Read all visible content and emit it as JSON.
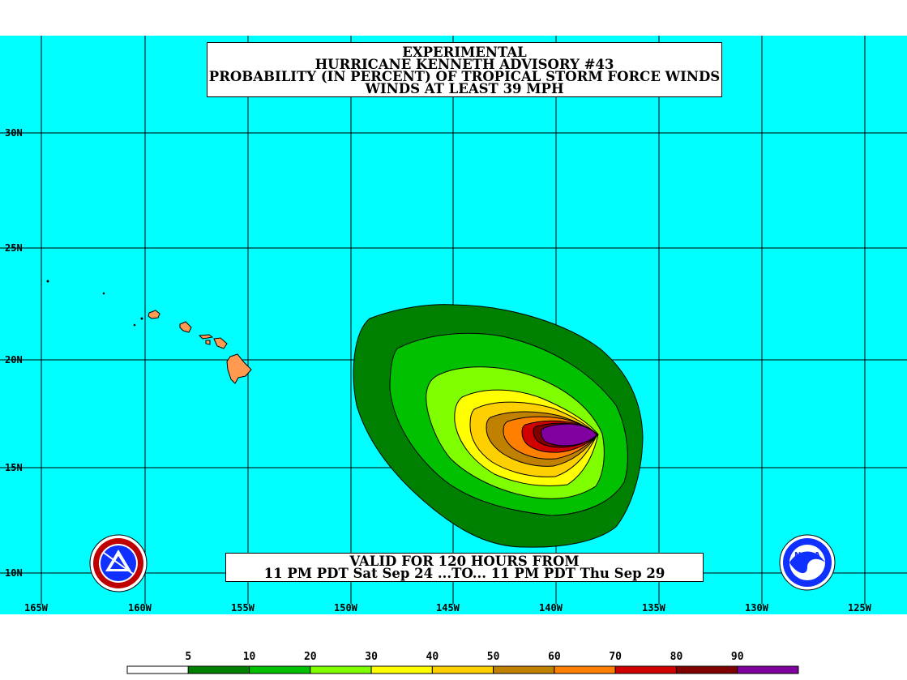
{
  "title": {
    "line1": "EXPERIMENTAL",
    "line2": "HURRICANE KENNETH ADVISORY #43",
    "line3": "PROBABILITY (IN PERCENT) OF TROPICAL STORM FORCE WINDS",
    "line4": "WINDS AT LEAST 39 MPH"
  },
  "valid": {
    "line1": "VALID FOR 120 HOURS FROM",
    "line2": "11 PM PDT Sat Sep 24 ...TO... 11 PM PDT Thu Sep 29"
  },
  "lat_labels": [
    "30N",
    "25N",
    "20N",
    "15N",
    "10N"
  ],
  "lon_labels": [
    "165W",
    "160W",
    "155W",
    "150W",
    "145W",
    "140W",
    "135W",
    "130W",
    "125W"
  ],
  "legend": {
    "labels": [
      "5",
      "10",
      "20",
      "30",
      "40",
      "50",
      "60",
      "70",
      "80",
      "90"
    ],
    "colors": [
      "#ffffff",
      "#008000",
      "#00c000",
      "#80ff00",
      "#ffff00",
      "#ffd000",
      "#c08000",
      "#ff8000",
      "#d00000",
      "#800000",
      "#8000a0"
    ]
  },
  "colors": {
    "ocean": "#00ffff",
    "land": "#ff9a50"
  },
  "logos": {
    "left": "nws-logo",
    "right": "noaa-logo",
    "right_text": "NOAA"
  }
}
